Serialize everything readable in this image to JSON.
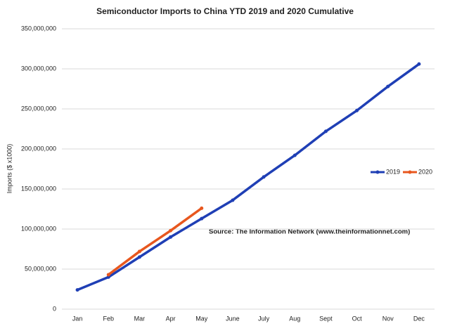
{
  "chart_data": {
    "type": "line",
    "title": "Semiconductor Imports to China YTD 2019 and 2020 Cumulative",
    "y_label": "Imports ($ x1000)",
    "annotation": "Source: The Information Network (www.theinformationnet.com)",
    "categories": [
      "Jan",
      "Feb",
      "Mar",
      "Apr",
      "May",
      "June",
      "July",
      "Aug",
      "Sept",
      "Oct",
      "Nov",
      "Dec"
    ],
    "series": [
      {
        "name": "2019",
        "color": "#1f3fb5",
        "values": [
          24000000,
          40000000,
          65000000,
          90000000,
          113000000,
          136000000,
          165000000,
          192000000,
          222000000,
          248000000,
          278000000,
          306000000
        ]
      },
      {
        "name": "2020",
        "color": "#e8571e",
        "values": [
          null,
          43000000,
          72000000,
          98000000,
          126000000,
          null,
          null,
          null,
          null,
          null,
          null,
          null
        ]
      }
    ],
    "ylim": [
      0,
      350000000
    ],
    "yticks": [
      0,
      {
        "value": 50000000,
        "label": "50,000,000"
      },
      {
        "value": 100000000,
        "label": "100,000,000"
      },
      {
        "value": 150000000,
        "label": "150,000,000"
      },
      {
        "value": 200000000,
        "label": "200,000,000"
      },
      {
        "value": 250000000,
        "label": "250,000,000"
      },
      {
        "value": 300000000,
        "label": "300,000,000"
      },
      {
        "value": 350000000,
        "label": "350,000,000"
      }
    ],
    "grid": true,
    "legend": "right"
  }
}
